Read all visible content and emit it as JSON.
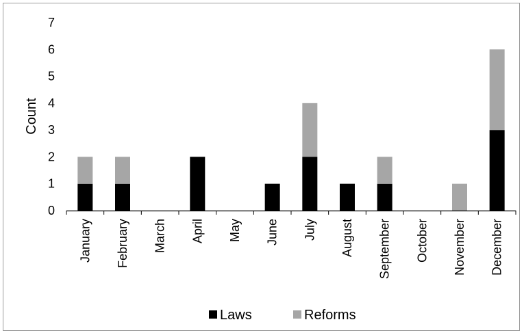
{
  "chart_data": {
    "type": "bar",
    "stacked": true,
    "categories": [
      "January",
      "February",
      "March",
      "April",
      "May",
      "June",
      "July",
      "August",
      "September",
      "October",
      "November",
      "December"
    ],
    "series": [
      {
        "name": "Laws",
        "values": [
          1,
          1,
          0,
          2,
          0,
          1,
          2,
          1,
          1,
          0,
          0,
          3
        ],
        "color": "#000000"
      },
      {
        "name": "Reforms",
        "values": [
          1,
          1,
          0,
          0,
          0,
          0,
          2,
          0,
          1,
          0,
          1,
          3
        ],
        "color": "#a6a6a6"
      }
    ],
    "title": "",
    "xlabel": "",
    "ylabel": "Count",
    "ylim": [
      0,
      7
    ],
    "yticks": [
      0,
      1,
      2,
      3,
      4,
      5,
      6,
      7
    ],
    "grid": false,
    "legend_position": "bottom"
  }
}
